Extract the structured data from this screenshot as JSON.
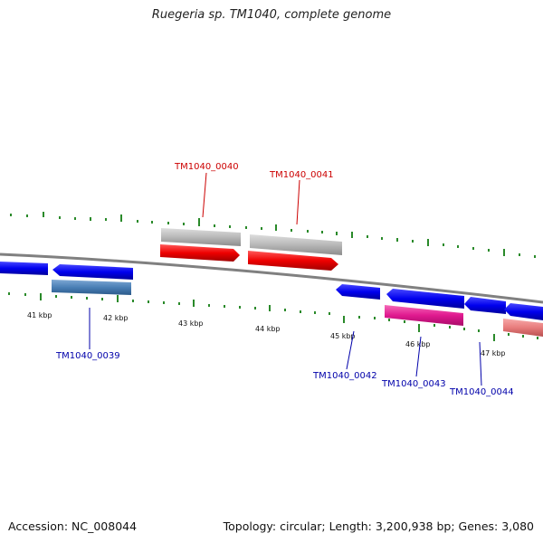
{
  "title": "Ruegeria sp. TM1040, complete genome",
  "footer": {
    "accession": "Accession: NC_008044",
    "summary": "Topology: circular; Length: 3,200,938 bp; Genes: 3,080"
  },
  "scale_labels": [
    "41 kbp",
    "42 kbp",
    "43 kbp",
    "44 kbp",
    "45 kbp",
    "46 kbp",
    "47 kbp"
  ],
  "gene_labels": {
    "g0039": "TM1040_0039",
    "g0040": "TM1040_0040",
    "g0041": "TM1040_0041",
    "g0042": "TM1040_0042",
    "g0043": "TM1040_0043",
    "g0044": "TM1040_0044"
  },
  "colors": {
    "forward_label": "#cc0000",
    "reverse_label": "#0000aa",
    "cds_reverse": "#0000ee",
    "cds_forward": "#ee0000",
    "gene_grey": "#b8b8b8",
    "highlight_steel": "#4a7fb5",
    "highlight_magenta": "#e0198f",
    "highlight_salmon": "#e87c7c",
    "tick_green": "#2a8a2a",
    "backbone": "#808080"
  }
}
